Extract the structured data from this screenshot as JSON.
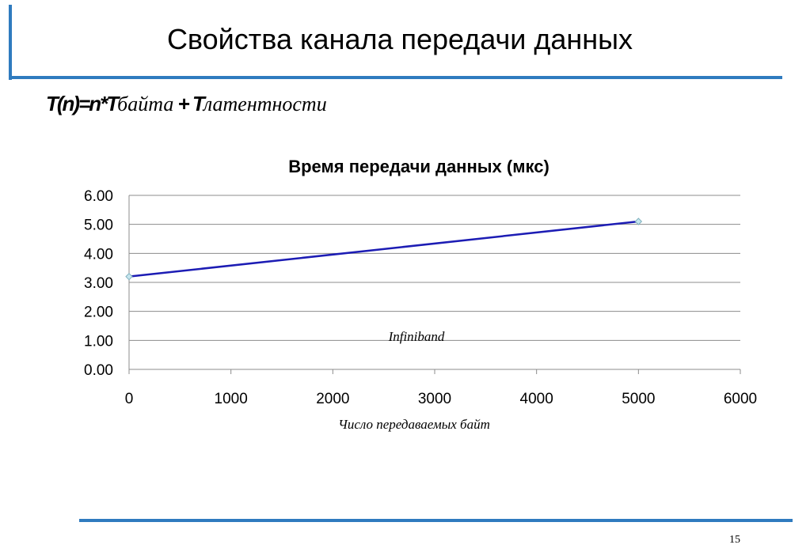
{
  "slide": {
    "title": "Свойства канала передачи данных",
    "formula_prefix": "T(n)=n*T",
    "formula_sub1": "байта",
    "formula_plus": " + T",
    "formula_sub2": "латентности",
    "page_number": "15"
  },
  "colors": {
    "accent_rule": "#2f7bbf",
    "series_line": "#1c1cb4",
    "marker_fill": "#c6e6ef",
    "marker_stroke": "#7fb0bd",
    "gridline": "#8c8c8c"
  },
  "chart_data": {
    "type": "line",
    "title": "Время передачи данных (мкс)",
    "xlabel": "Число передаваемых байт",
    "ylabel": "",
    "x": [
      0,
      5000
    ],
    "series": [
      {
        "values": [
          3.2,
          5.1
        ]
      }
    ],
    "xlim": [
      0,
      6000
    ],
    "ylim": [
      0,
      6
    ],
    "x_ticks": [
      "0",
      "1000",
      "2000",
      "3000",
      "4000",
      "5000",
      "6000"
    ],
    "y_ticks": [
      "0.00",
      "1.00",
      "2.00",
      "3.00",
      "4.00",
      "5.00",
      "6.00"
    ],
    "annotation": "Infiniband",
    "grid": "horizontal",
    "legend": "none"
  }
}
